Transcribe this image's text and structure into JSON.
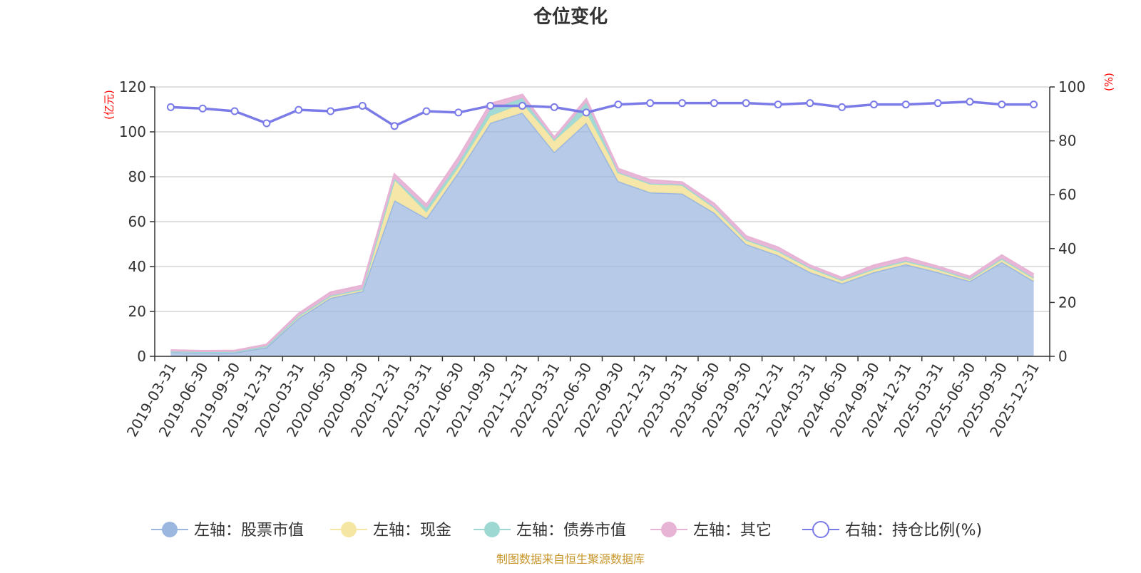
{
  "chart_data": {
    "type": "area",
    "title": "仓位变化",
    "left_axis_unit": "(亿元)",
    "right_axis_unit": "(%)",
    "x": [
      "2019-03-31",
      "2019-06-30",
      "2019-09-30",
      "2019-12-31",
      "2020-03-31",
      "2020-06-30",
      "2020-09-30",
      "2020-12-31",
      "2021-03-31",
      "2021-06-30",
      "2021-09-30",
      "2021-12-31",
      "2022-03-31",
      "2022-06-30",
      "2022-09-30",
      "2022-12-31",
      "2023-03-31",
      "2023-06-30",
      "2023-09-30",
      "2023-12-31",
      "2024-03-31",
      "2024-06-30",
      "2024-09-30",
      "2024-12-31",
      "2025-03-31",
      "2025-06-30",
      "2025-09-30",
      "2025-12-31"
    ],
    "y_left_lim": [
      0,
      120
    ],
    "y_left_ticks": [
      0,
      20,
      40,
      60,
      80,
      100,
      120
    ],
    "y_right_lim": [
      0,
      100
    ],
    "y_right_ticks": [
      0,
      20,
      40,
      60,
      80,
      100
    ],
    "grid": true,
    "legend_position": "bottom",
    "series": [
      {
        "name": "左轴：股票市值",
        "axis": "left",
        "stack": true,
        "color": "#9bb7e0",
        "values": [
          2.0,
          1.6,
          1.7,
          4.0,
          17.0,
          26.0,
          29.0,
          69.5,
          61.5,
          82.0,
          104.0,
          108.5,
          91.0,
          104.0,
          78.0,
          73.0,
          72.5,
          64.0,
          50.0,
          45.0,
          37.5,
          32.5,
          37.5,
          41.0,
          37.5,
          33.5,
          42.0,
          33.5
        ]
      },
      {
        "name": "左轴：现金",
        "axis": "left",
        "stack": true,
        "color": "#f5e6a3",
        "values": [
          0.3,
          0.4,
          0.4,
          0.6,
          1.0,
          1.0,
          1.0,
          9.0,
          2.5,
          2.0,
          3.0,
          4.0,
          5.0,
          4.5,
          4.0,
          4.0,
          3.5,
          2.5,
          2.0,
          2.0,
          2.0,
          1.5,
          1.5,
          1.5,
          1.5,
          1.0,
          1.5,
          1.5
        ]
      },
      {
        "name": "左轴：债券市值",
        "axis": "left",
        "stack": true,
        "color": "#9ed8d3",
        "values": [
          0.0,
          0.0,
          0.0,
          0.0,
          0.0,
          0.0,
          0.0,
          0.5,
          2.0,
          2.0,
          3.0,
          2.5,
          0.5,
          4.5,
          0.0,
          0.0,
          0.5,
          0.0,
          0.0,
          0.0,
          0.0,
          0.0,
          0.0,
          0.0,
          0.0,
          0.0,
          0.0,
          0.0
        ]
      },
      {
        "name": "左轴：其它",
        "axis": "left",
        "stack": true,
        "color": "#e8b4d6",
        "values": [
          0.4,
          0.4,
          0.4,
          0.6,
          1.0,
          1.5,
          1.5,
          2.0,
          1.5,
          2.5,
          2.5,
          1.5,
          1.0,
          1.5,
          1.5,
          1.5,
          1.0,
          1.5,
          1.5,
          1.5,
          1.0,
          1.0,
          1.5,
          1.5,
          1.0,
          1.0,
          1.5,
          1.5
        ]
      },
      {
        "name": "右轴：持仓比例(%)",
        "axis": "right",
        "stack": false,
        "color": "#7b7be8",
        "values": [
          92.5,
          92.0,
          91.0,
          86.5,
          91.5,
          91.0,
          93.0,
          85.5,
          91.0,
          90.5,
          93.0,
          93.0,
          92.5,
          90.5,
          93.5,
          94.0,
          94.0,
          94.0,
          94.0,
          93.5,
          94.0,
          92.5,
          93.5,
          93.5,
          94.0,
          94.5,
          93.5,
          93.5
        ]
      }
    ]
  },
  "footer": "制图数据来自恒生聚源数据库"
}
